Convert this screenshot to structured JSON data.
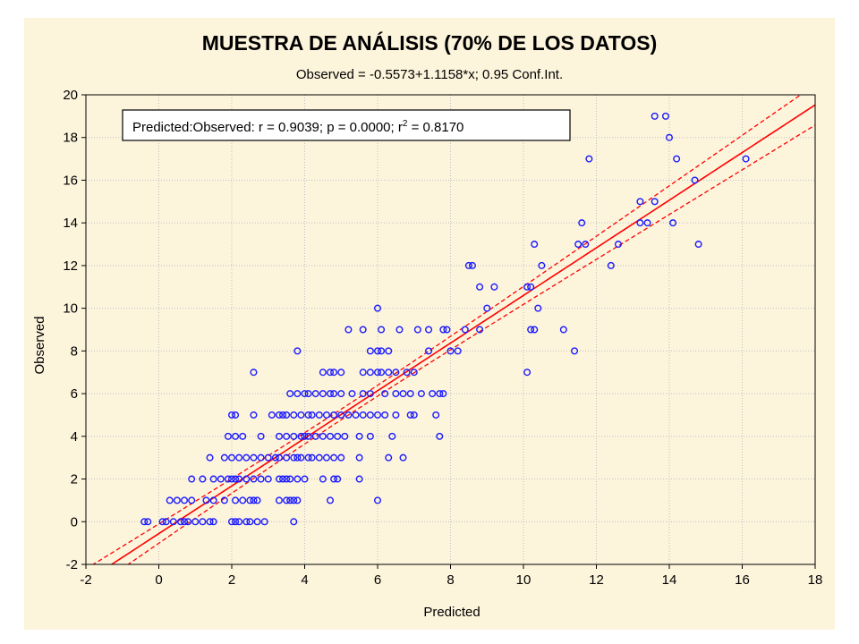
{
  "chart_data": {
    "type": "scatter",
    "title": "MUESTRA DE ANÁLISIS (70% DE LOS DATOS)",
    "subtitle": "Observed = -0.5573+1.1158*x; 0.95 Conf.Int.",
    "xlabel": "Predicted",
    "ylabel": "Observed",
    "xlim": [
      -2,
      18
    ],
    "ylim": [
      -2,
      20
    ],
    "x_ticks": [
      "-2",
      "0",
      "2",
      "4",
      "6",
      "8",
      "10",
      "12",
      "14",
      "16",
      "18"
    ],
    "y_ticks": [
      "-2",
      "0",
      "2",
      "4",
      "6",
      "8",
      "10",
      "12",
      "14",
      "16",
      "18",
      "20"
    ],
    "grid": true,
    "legend": {
      "placement": "top-left",
      "text_main": "Predicted:Observed:   r = 0.9039; p = 0.0000; r",
      "text_sup": "2",
      "text_tail": " = 0.8170"
    },
    "regression": {
      "intercept": -0.5573,
      "slope": 1.1158,
      "conf_level": 0.95
    },
    "colors": {
      "points": "#1a1aff",
      "fit_line": "#ff0000",
      "conf_band": "#ff0000",
      "background": "#fdf4dc",
      "grid": "#bfbfbf"
    },
    "series": [
      {
        "points": [
          [
            -0.4,
            0
          ],
          [
            -0.3,
            0
          ],
          [
            0.1,
            0
          ],
          [
            0.2,
            0
          ],
          [
            0.4,
            0
          ],
          [
            0.6,
            0
          ],
          [
            0.7,
            0
          ],
          [
            0.8,
            0
          ],
          [
            1.0,
            0
          ],
          [
            1.2,
            0
          ],
          [
            1.4,
            0
          ],
          [
            1.5,
            0
          ],
          [
            2.0,
            0
          ],
          [
            2.1,
            0
          ],
          [
            2.2,
            0
          ],
          [
            2.4,
            0
          ],
          [
            2.5,
            0
          ],
          [
            2.7,
            0
          ],
          [
            2.9,
            0
          ],
          [
            3.7,
            0
          ],
          [
            0.3,
            1
          ],
          [
            0.5,
            1
          ],
          [
            0.7,
            1
          ],
          [
            0.9,
            1
          ],
          [
            1.3,
            1
          ],
          [
            1.5,
            1
          ],
          [
            1.8,
            1
          ],
          [
            2.1,
            1
          ],
          [
            2.3,
            1
          ],
          [
            2.5,
            1
          ],
          [
            2.6,
            1
          ],
          [
            2.7,
            1
          ],
          [
            3.3,
            1
          ],
          [
            3.5,
            1
          ],
          [
            3.6,
            1
          ],
          [
            3.7,
            1
          ],
          [
            3.8,
            1
          ],
          [
            4.7,
            1
          ],
          [
            6.0,
            1
          ],
          [
            0.9,
            2
          ],
          [
            1.2,
            2
          ],
          [
            1.5,
            2
          ],
          [
            1.7,
            2
          ],
          [
            1.9,
            2
          ],
          [
            2.0,
            2
          ],
          [
            2.1,
            2
          ],
          [
            2.2,
            2
          ],
          [
            2.4,
            2
          ],
          [
            2.6,
            2
          ],
          [
            2.8,
            2
          ],
          [
            3.0,
            2
          ],
          [
            3.3,
            2
          ],
          [
            3.4,
            2
          ],
          [
            3.5,
            2
          ],
          [
            3.6,
            2
          ],
          [
            3.8,
            2
          ],
          [
            4.0,
            2
          ],
          [
            4.5,
            2
          ],
          [
            4.8,
            2
          ],
          [
            4.9,
            2
          ],
          [
            5.5,
            2
          ],
          [
            1.4,
            3
          ],
          [
            1.8,
            3
          ],
          [
            2.0,
            3
          ],
          [
            2.2,
            3
          ],
          [
            2.4,
            3
          ],
          [
            2.6,
            3
          ],
          [
            2.8,
            3
          ],
          [
            3.0,
            3
          ],
          [
            3.2,
            3
          ],
          [
            3.3,
            3
          ],
          [
            3.5,
            3
          ],
          [
            3.7,
            3
          ],
          [
            3.8,
            3
          ],
          [
            3.9,
            3
          ],
          [
            4.1,
            3
          ],
          [
            4.2,
            3
          ],
          [
            4.4,
            3
          ],
          [
            4.6,
            3
          ],
          [
            4.8,
            3
          ],
          [
            5.0,
            3
          ],
          [
            5.5,
            3
          ],
          [
            6.3,
            3
          ],
          [
            6.7,
            3
          ],
          [
            1.9,
            4
          ],
          [
            2.1,
            4
          ],
          [
            2.3,
            4
          ],
          [
            2.8,
            4
          ],
          [
            3.3,
            4
          ],
          [
            3.5,
            4
          ],
          [
            3.7,
            4
          ],
          [
            3.9,
            4
          ],
          [
            4.0,
            4
          ],
          [
            4.1,
            4
          ],
          [
            4.3,
            4
          ],
          [
            4.5,
            4
          ],
          [
            4.7,
            4
          ],
          [
            4.9,
            4
          ],
          [
            5.1,
            4
          ],
          [
            5.5,
            4
          ],
          [
            5.8,
            4
          ],
          [
            6.4,
            4
          ],
          [
            7.7,
            4
          ],
          [
            2.0,
            5
          ],
          [
            2.1,
            5
          ],
          [
            2.6,
            5
          ],
          [
            3.1,
            5
          ],
          [
            3.3,
            5
          ],
          [
            3.4,
            5
          ],
          [
            3.5,
            5
          ],
          [
            3.7,
            5
          ],
          [
            3.9,
            5
          ],
          [
            4.1,
            5
          ],
          [
            4.2,
            5
          ],
          [
            4.4,
            5
          ],
          [
            4.6,
            5
          ],
          [
            4.8,
            5
          ],
          [
            5.0,
            5
          ],
          [
            5.2,
            5
          ],
          [
            5.4,
            5
          ],
          [
            5.6,
            5
          ],
          [
            5.8,
            5
          ],
          [
            6.0,
            5
          ],
          [
            6.2,
            5
          ],
          [
            6.5,
            5
          ],
          [
            6.9,
            5
          ],
          [
            7.0,
            5
          ],
          [
            7.6,
            5
          ],
          [
            3.6,
            6
          ],
          [
            3.8,
            6
          ],
          [
            4.0,
            6
          ],
          [
            4.1,
            6
          ],
          [
            4.3,
            6
          ],
          [
            4.5,
            6
          ],
          [
            4.7,
            6
          ],
          [
            4.8,
            6
          ],
          [
            5.0,
            6
          ],
          [
            5.3,
            6
          ],
          [
            5.6,
            6
          ],
          [
            5.8,
            6
          ],
          [
            6.2,
            6
          ],
          [
            6.5,
            6
          ],
          [
            6.7,
            6
          ],
          [
            6.9,
            6
          ],
          [
            7.2,
            6
          ],
          [
            7.5,
            6
          ],
          [
            7.7,
            6
          ],
          [
            7.8,
            6
          ],
          [
            2.6,
            7
          ],
          [
            4.5,
            7
          ],
          [
            4.7,
            7
          ],
          [
            4.8,
            7
          ],
          [
            5.0,
            7
          ],
          [
            5.6,
            7
          ],
          [
            5.8,
            7
          ],
          [
            6.0,
            7
          ],
          [
            6.1,
            7
          ],
          [
            6.3,
            7
          ],
          [
            6.5,
            7
          ],
          [
            6.8,
            7
          ],
          [
            7.0,
            7
          ],
          [
            3.8,
            8
          ],
          [
            5.8,
            8
          ],
          [
            6.0,
            8
          ],
          [
            6.1,
            8
          ],
          [
            6.3,
            8
          ],
          [
            7.4,
            8
          ],
          [
            8.0,
            8
          ],
          [
            8.2,
            8
          ],
          [
            11.4,
            8
          ],
          [
            5.2,
            9
          ],
          [
            5.6,
            9
          ],
          [
            6.1,
            9
          ],
          [
            6.6,
            9
          ],
          [
            7.1,
            9
          ],
          [
            7.4,
            9
          ],
          [
            7.8,
            9
          ],
          [
            7.9,
            9
          ],
          [
            8.4,
            9
          ],
          [
            8.8,
            9
          ],
          [
            10.3,
            9
          ],
          [
            11.1,
            9
          ],
          [
            6.0,
            10
          ],
          [
            9.0,
            10
          ],
          [
            10.4,
            10
          ],
          [
            8.8,
            11
          ],
          [
            9.2,
            11
          ],
          [
            10.1,
            11
          ],
          [
            10.2,
            11
          ],
          [
            8.5,
            12
          ],
          [
            8.6,
            12
          ],
          [
            10.5,
            12
          ],
          [
            12.4,
            12
          ],
          [
            10.3,
            13
          ],
          [
            11.5,
            13
          ],
          [
            11.7,
            13
          ],
          [
            14.8,
            13
          ],
          [
            11.6,
            14
          ],
          [
            13.2,
            14
          ],
          [
            13.4,
            14
          ],
          [
            14.1,
            14
          ],
          [
            13.2,
            15
          ],
          [
            13.6,
            15
          ],
          [
            14.7,
            16
          ],
          [
            11.8,
            17
          ],
          [
            14.2,
            17
          ],
          [
            16.1,
            17
          ],
          [
            14.0,
            18
          ],
          [
            13.6,
            19
          ],
          [
            13.9,
            19
          ],
          [
            10.1,
            7
          ],
          [
            10.2,
            9
          ],
          [
            12.6,
            13
          ]
        ]
      }
    ]
  }
}
